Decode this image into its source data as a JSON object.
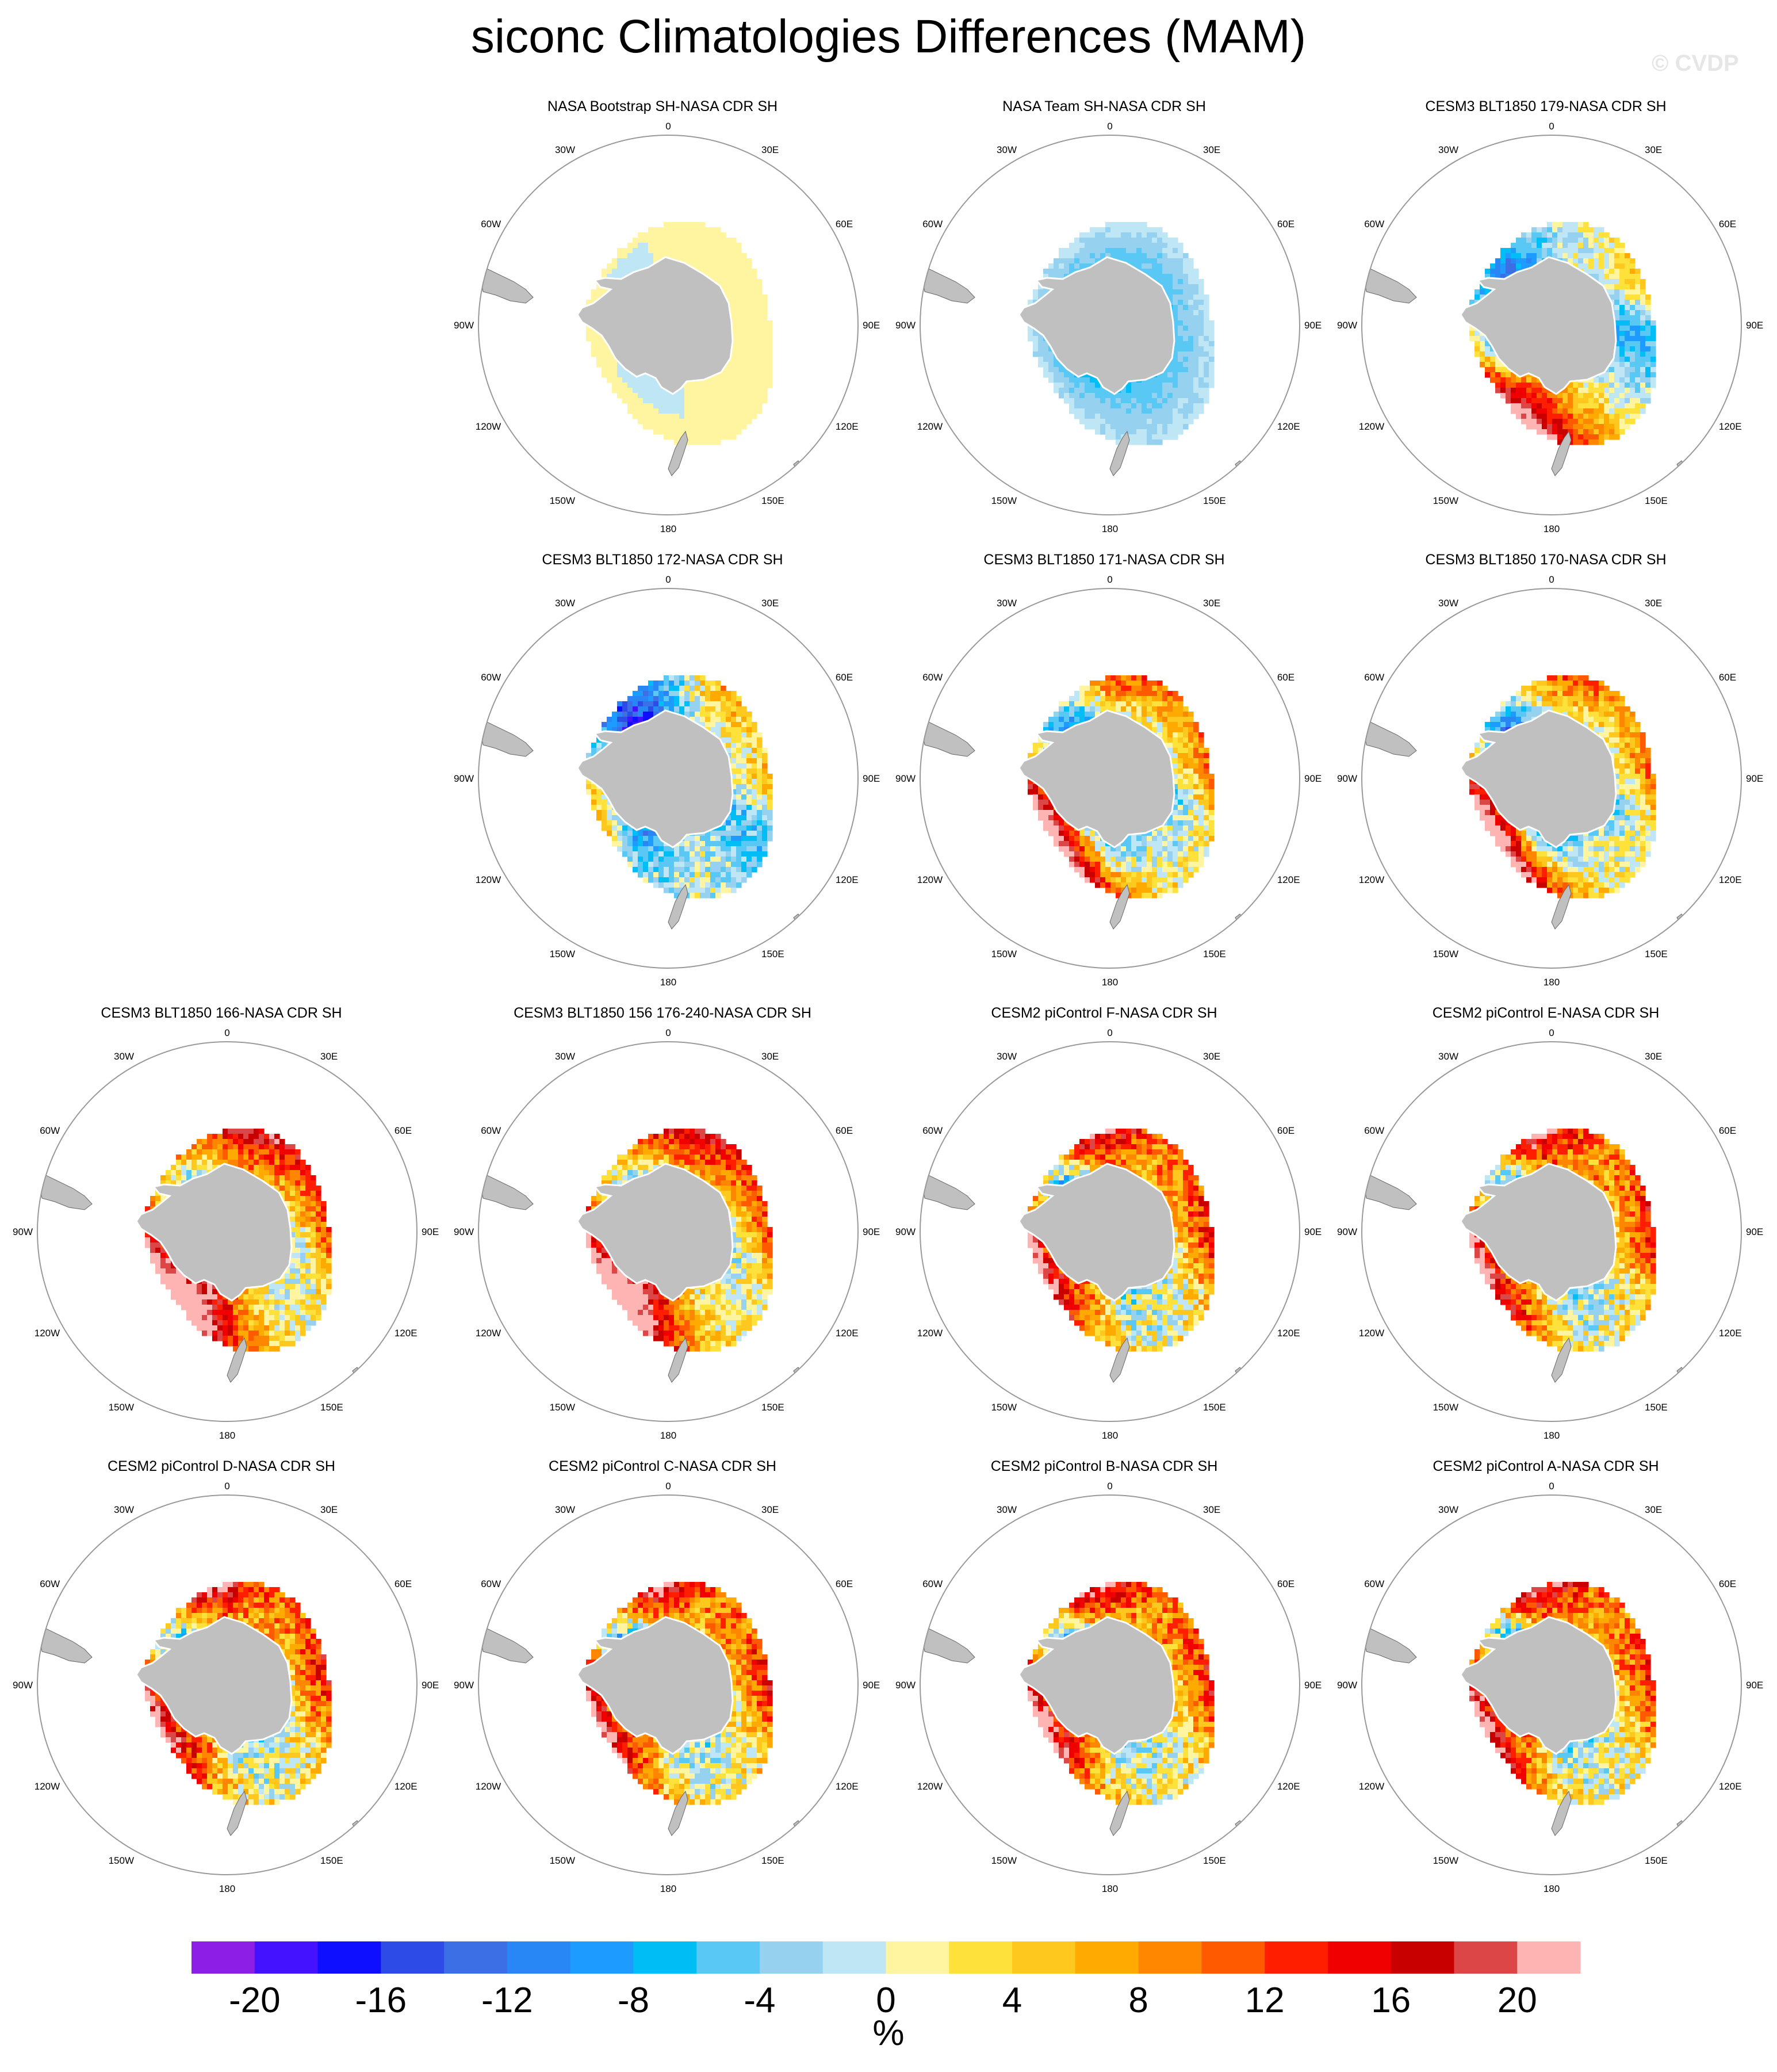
{
  "title": "siconc Climatologies Differences (MAM)",
  "watermark": "© CVDP",
  "panels": [
    {
      "title": "NASA Bootstrap SH-NASA CDR SH",
      "pattern": "bootstrap"
    },
    {
      "title": "NASA Team SH-NASA CDR SH",
      "pattern": "team"
    },
    {
      "title": "CESM3 BLT1850 179-NASA CDR SH",
      "pattern": "cesm3a"
    },
    {
      "title": "CESM3 BLT1850 172-NASA CDR SH",
      "pattern": "cesm3b"
    },
    {
      "title": "CESM3 BLT1850 171-NASA CDR SH",
      "pattern": "cesm3c"
    },
    {
      "title": "CESM3 BLT1850 170-NASA CDR SH",
      "pattern": "cesm3c"
    },
    {
      "title": "CESM3 BLT1850 166-NASA CDR SH",
      "pattern": "cesm3d"
    },
    {
      "title": "CESM3 BLT1850 156 176-240-NASA CDR SH",
      "pattern": "cesm3d"
    },
    {
      "title": "CESM2 piControl F-NASA CDR SH",
      "pattern": "cesm2"
    },
    {
      "title": "CESM2 piControl E-NASA CDR SH",
      "pattern": "cesm2"
    },
    {
      "title": "CESM2 piControl D-NASA CDR SH",
      "pattern": "cesm2"
    },
    {
      "title": "CESM2 piControl C-NASA CDR SH",
      "pattern": "cesm2"
    },
    {
      "title": "CESM2 piControl B-NASA CDR SH",
      "pattern": "cesm2"
    },
    {
      "title": "CESM2 piControl A-NASA CDR SH",
      "pattern": "cesm2"
    }
  ],
  "longitude_labels": [
    {
      "lon": 0,
      "text": "0"
    },
    {
      "lon": 30,
      "text": "30E"
    },
    {
      "lon": 60,
      "text": "60E"
    },
    {
      "lon": 90,
      "text": "90E"
    },
    {
      "lon": 120,
      "text": "120E"
    },
    {
      "lon": 150,
      "text": "150E"
    },
    {
      "lon": 180,
      "text": "180"
    },
    {
      "lon": -150,
      "text": "150W"
    },
    {
      "lon": -120,
      "text": "120W"
    },
    {
      "lon": -90,
      "text": "90W"
    },
    {
      "lon": -60,
      "text": "60W"
    },
    {
      "lon": -30,
      "text": "30W"
    }
  ],
  "colors": {
    "land": "#c0c0c0",
    "frame": "#999999"
  },
  "chart_data": {
    "type": "heatmap",
    "projection": "south polar stereographic",
    "variable": "siconc",
    "season": "MAM",
    "unit": "%",
    "colorbar": {
      "levels": [
        -22,
        -20,
        -18,
        -16,
        -14,
        -12,
        -10,
        -8,
        -6,
        -4,
        -2,
        0,
        2,
        4,
        6,
        8,
        10,
        12,
        14,
        16,
        18,
        20,
        22
      ],
      "colors": [
        "#8c1ee6",
        "#4412ff",
        "#0f0fff",
        "#2d4be6",
        "#3c6ee6",
        "#2887f5",
        "#1e9bff",
        "#00bef5",
        "#5ac8f5",
        "#96d2f0",
        "#bee6f5",
        "#fff5a0",
        "#ffe13c",
        "#ffc81e",
        "#ffaa00",
        "#ff8700",
        "#ff5a00",
        "#ff1e00",
        "#f00000",
        "#c80000",
        "#dc4646",
        "#ffb4b4"
      ],
      "tick_labels": [
        "-20",
        "-16",
        "-12",
        "-8",
        "-4",
        "0",
        "4",
        "8",
        "12",
        "16",
        "20"
      ]
    }
  }
}
